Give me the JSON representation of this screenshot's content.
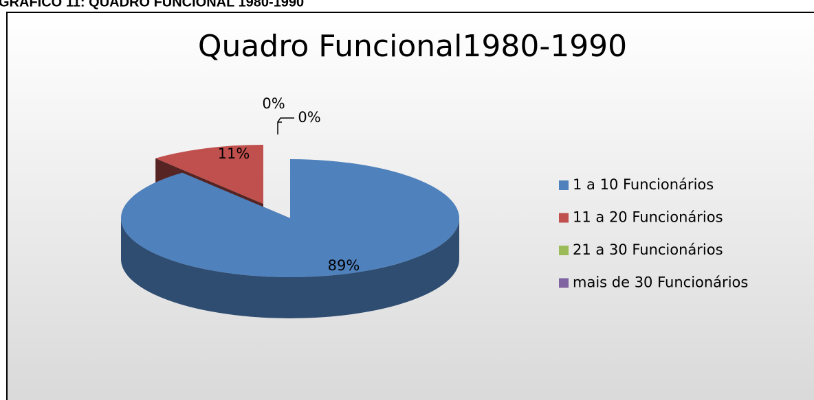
{
  "heading": "GRÁFICO 11: QUADRO FUNCIONAL 1980-1990",
  "chart_data": {
    "type": "pie",
    "title": "Quadro Funcional1980-1990",
    "categories": [
      "1 a 10 Funcionários",
      "11 a 20 Funcionários",
      "21 a 30 Funcionários",
      "mais de 30 Funcionários"
    ],
    "values": [
      89,
      11,
      0,
      0
    ],
    "value_labels": [
      "89%",
      "11%",
      "0%",
      "0%"
    ],
    "colors": [
      "#4f81bd",
      "#c0504d",
      "#9bbb59",
      "#8064a2"
    ],
    "legend": "right"
  }
}
